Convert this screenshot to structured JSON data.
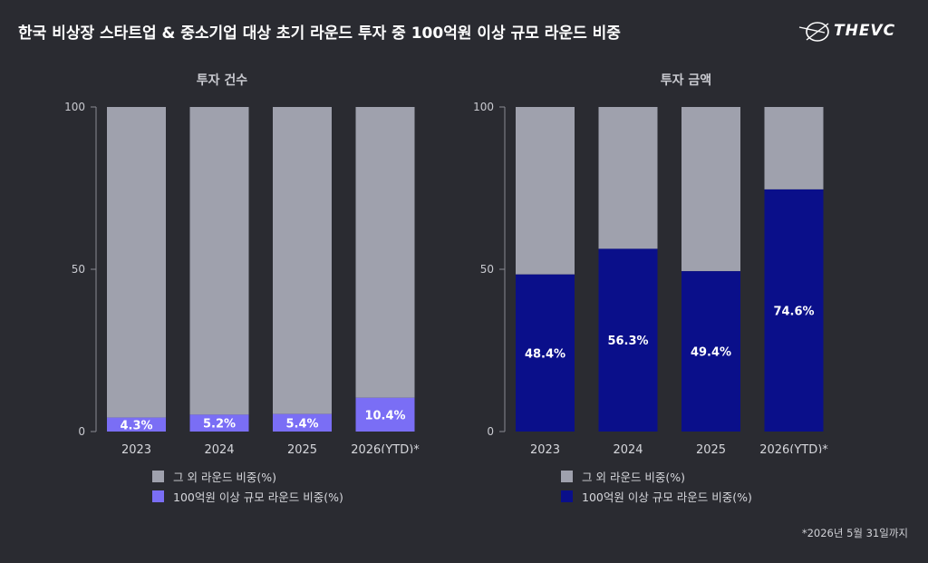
{
  "header": {
    "title": "한국 비상장 스타트업 & 중소기업 대상 초기 라운드 투자 중 100억원 이상 규모 라운드 비중",
    "brand": "THEVC"
  },
  "footnote": "*2026년 5월 31일까지",
  "colors": {
    "background": "#2a2b31",
    "other": "#9fa1ad",
    "left_highlight": "#7a6ef5",
    "right_highlight": "#0a0f8a"
  },
  "chart_data": [
    {
      "type": "bar",
      "stacked": true,
      "title": "투자 건수",
      "categories": [
        "2023",
        "2024",
        "2025",
        "2026(YTD)*"
      ],
      "ylim": [
        0,
        100
      ],
      "yticks": [
        "0",
        "50",
        "100"
      ],
      "series": [
        {
          "name": "그 외 라운드 비중(%)",
          "values": [
            95.7,
            94.8,
            94.6,
            89.6
          ]
        },
        {
          "name": "100억원 이상 규모 라운드 비중(%)",
          "values": [
            4.3,
            5.2,
            5.4,
            10.4
          ]
        }
      ],
      "data_labels": [
        "4.3%",
        "5.2%",
        "5.4%",
        "10.4%"
      ],
      "legend": [
        "그 외 라운드 비중(%)",
        "100억원 이상 규모 라운드 비중(%)"
      ],
      "legend_position": "bottom"
    },
    {
      "type": "bar",
      "stacked": true,
      "title": "투자 금액",
      "categories": [
        "2023",
        "2024",
        "2025",
        "2026(YTD)*"
      ],
      "ylim": [
        0,
        100
      ],
      "yticks": [
        "0",
        "50",
        "100"
      ],
      "series": [
        {
          "name": "그 외 라운드 비중(%)",
          "values": [
            51.6,
            43.7,
            50.6,
            25.4
          ]
        },
        {
          "name": "100억원 이상 규모 라운드 비중(%)",
          "values": [
            48.4,
            56.3,
            49.4,
            74.6
          ]
        }
      ],
      "data_labels": [
        "48.4%",
        "56.3%",
        "49.4%",
        "74.6%"
      ],
      "legend": [
        "그 외 라운드 비중(%)",
        "100억원 이상 규모 라운드 비중(%)"
      ],
      "legend_position": "bottom"
    }
  ]
}
